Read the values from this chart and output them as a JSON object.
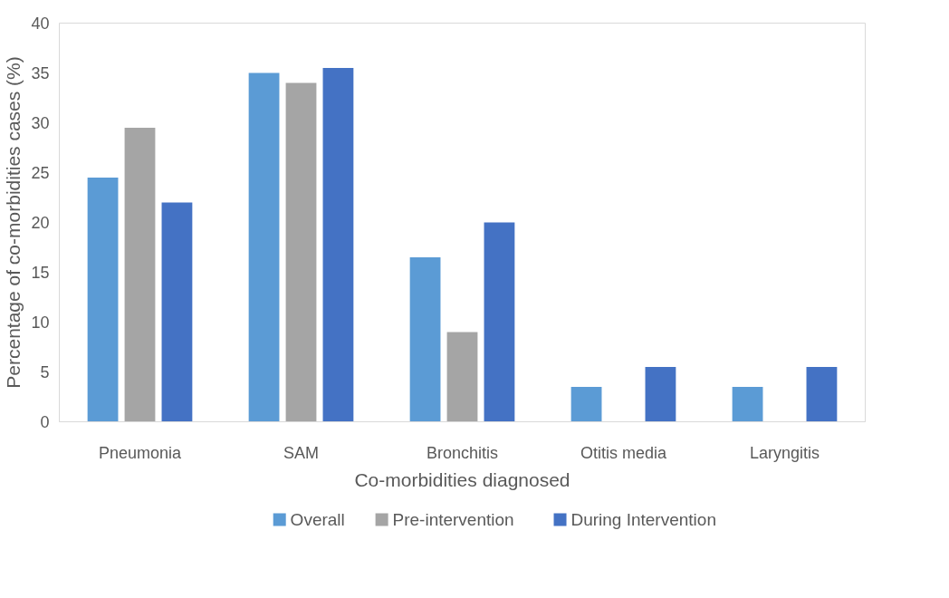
{
  "chart_data": {
    "type": "bar",
    "xlabel": "Co-morbidities diagnosed",
    "ylabel": "Percentage of co-morbidities cases (%)",
    "categories": [
      "Pneumonia",
      "SAM",
      "Bronchitis",
      "Otitis media",
      "Laryngitis"
    ],
    "series": [
      {
        "name": "Overall",
        "color": "#5b9bd5",
        "values": [
          24.5,
          35,
          16.5,
          3.5,
          3.5
        ]
      },
      {
        "name": "Pre-intervention",
        "color": "#a5a5a5",
        "values": [
          29.5,
          34,
          9,
          0,
          0
        ]
      },
      {
        "name": "During Intervention",
        "color": "#4472c4",
        "values": [
          22,
          35.5,
          20,
          5.5,
          5.5
        ]
      }
    ],
    "ylim": [
      0,
      40
    ],
    "yticks": [
      0,
      5,
      10,
      15,
      20,
      25,
      30,
      35,
      40
    ],
    "grid": false,
    "legend": "bottom"
  }
}
